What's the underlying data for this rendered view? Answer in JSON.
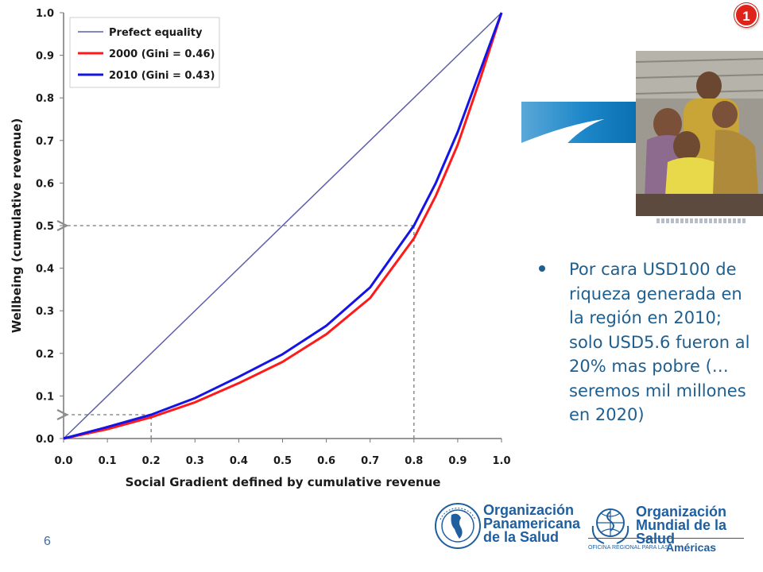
{
  "chart_data": {
    "type": "line",
    "xlabel": "Social Gradient defined by cumulative revenue",
    "ylabel": "Wellbeing (cumulative revenue)",
    "xlim": [
      0,
      1
    ],
    "ylim": [
      0,
      1
    ],
    "x_ticks": [
      "0.0",
      "0.1",
      "0.2",
      "0.3",
      "0.4",
      "0.5",
      "0.6",
      "0.7",
      "0.8",
      "0.9",
      "1.0"
    ],
    "y_ticks": [
      "0.0",
      "0.1",
      "0.2",
      "0.3",
      "0.4",
      "0.5",
      "0.6",
      "0.7",
      "0.8",
      "0.9",
      "1.0"
    ],
    "legend_position": "top-left",
    "grid": false,
    "series": [
      {
        "name": "Prefect equality",
        "color": "#5b5fa8",
        "x": [
          0,
          1
        ],
        "y": [
          0,
          1
        ]
      },
      {
        "name": "2000 (Gini = 0.46)",
        "color": "#ff1a1a",
        "x": [
          0,
          0.1,
          0.2,
          0.3,
          0.4,
          0.5,
          0.6,
          0.7,
          0.8,
          0.85,
          0.9,
          0.95,
          1.0
        ],
        "y": [
          0,
          0.022,
          0.05,
          0.085,
          0.13,
          0.18,
          0.245,
          0.33,
          0.47,
          0.57,
          0.69,
          0.84,
          1.0
        ]
      },
      {
        "name": "2010 (Gini = 0.43)",
        "color": "#1414e6",
        "x": [
          0,
          0.1,
          0.2,
          0.3,
          0.4,
          0.5,
          0.6,
          0.7,
          0.8,
          0.85,
          0.9,
          0.95,
          1.0
        ],
        "y": [
          0,
          0.027,
          0.056,
          0.095,
          0.145,
          0.198,
          0.265,
          0.355,
          0.5,
          0.6,
          0.72,
          0.86,
          1.0
        ]
      }
    ],
    "reference_lines": [
      {
        "x": 0.2,
        "y": 0.056
      },
      {
        "x": 0.8,
        "y": 0.5
      }
    ]
  },
  "badge": "1",
  "bullet": "Por cara USD100 de riqueza generada en la región en 2010; solo USD5.6 fueron al 20% mas pobre (… seremos mil millones en 2020)",
  "page_number": "6",
  "logos": {
    "ops_title": [
      "Organización",
      "Panamericana",
      "de la Salud"
    ],
    "oms_title": [
      "Organización",
      "Mundial de la Salud"
    ],
    "oms_office": "OFICINA REGIONAL PARA LAS",
    "oms_region": "Américas"
  },
  "colors": {
    "accent": "#1f5f8f",
    "badge": "#e0231a",
    "logo": "#1f5f9f"
  }
}
